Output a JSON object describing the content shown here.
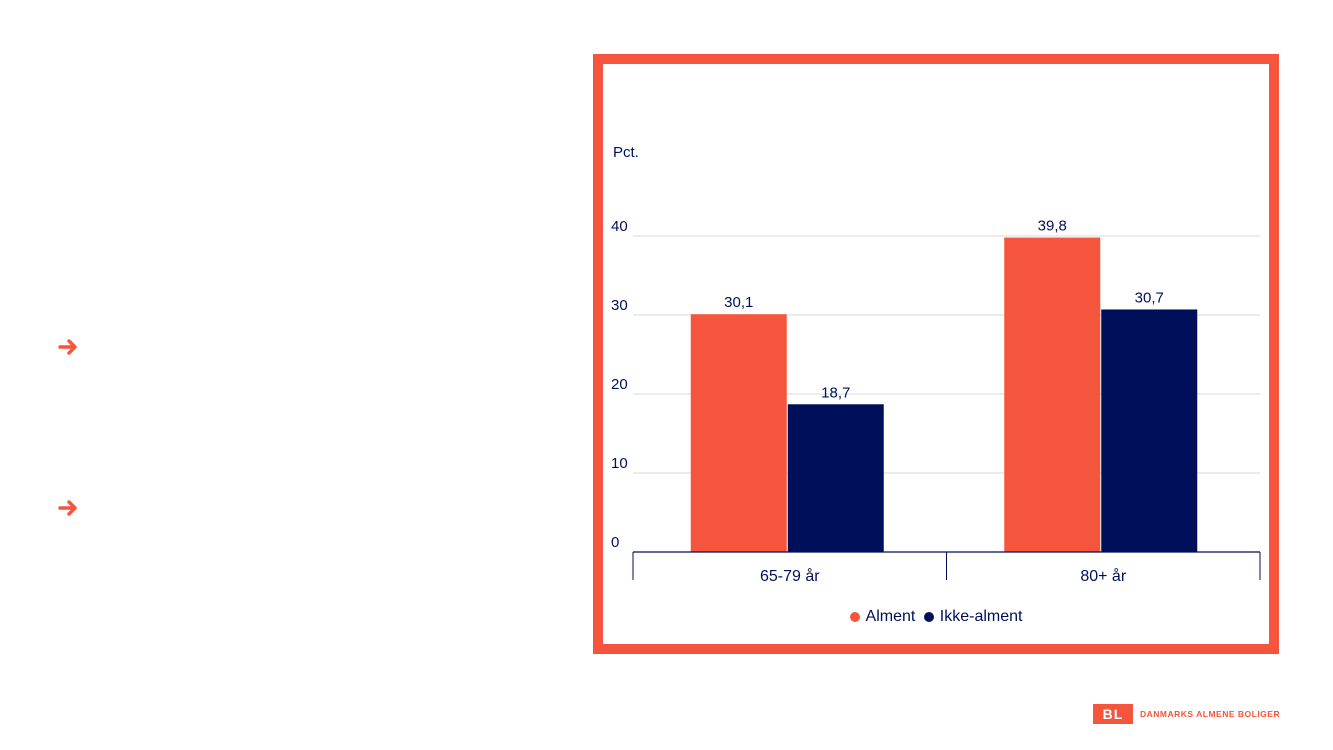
{
  "colors": {
    "accent": "#f5553c",
    "navy": "#000f5a",
    "gridline": "#d9d9d9"
  },
  "bullets": [
    {
      "icon": "arrow-right-icon"
    },
    {
      "icon": "arrow-right-icon"
    }
  ],
  "chart_data": {
    "type": "bar",
    "ylabel": "Pct.",
    "categories": [
      "65-79 år",
      "80+ år"
    ],
    "series": [
      {
        "name": "Alment",
        "color": "#f5553c",
        "values": [
          30.1,
          39.8
        ],
        "labels": [
          "30,1",
          "39,8"
        ]
      },
      {
        "name": "Ikke-alment",
        "color": "#000f5a",
        "values": [
          18.7,
          30.7
        ],
        "labels": [
          "18,7",
          "30,7"
        ]
      }
    ],
    "ylim": [
      0,
      40
    ],
    "yticks": [
      0,
      10,
      20,
      30,
      40
    ],
    "grid": true,
    "legend": "bottom"
  },
  "logo": {
    "mark": "BL",
    "text": "DANMARKS ALMENE BOLIGER"
  }
}
